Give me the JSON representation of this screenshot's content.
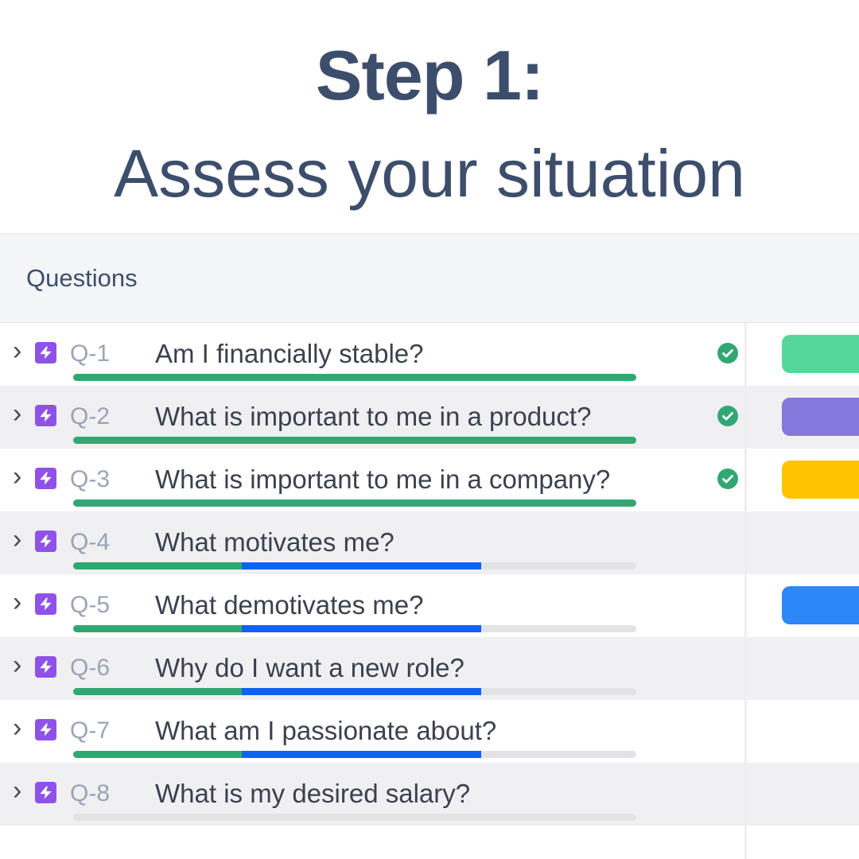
{
  "page": {
    "title_bold": "Step 1:",
    "title_light": "Assess your situation"
  },
  "table": {
    "section_label": "Questions",
    "rows": [
      {
        "id": "Q-1",
        "question": "Am I financially stable?",
        "status": "complete",
        "pill": "green"
      },
      {
        "id": "Q-2",
        "question": "What is important to me in a product?",
        "status": "complete",
        "pill": "purple"
      },
      {
        "id": "Q-3",
        "question": "What is important to me in a company?",
        "status": "complete",
        "pill": "yellow"
      },
      {
        "id": "Q-4",
        "question": "What motivates me?",
        "status": "in_progress",
        "pill": null
      },
      {
        "id": "Q-5",
        "question": "What demotivates me?",
        "status": "in_progress",
        "pill": "blue"
      },
      {
        "id": "Q-6",
        "question": "Why do I want a new role?",
        "status": "in_progress",
        "pill": null
      },
      {
        "id": "Q-7",
        "question": "What am I passionate about?",
        "status": "in_progress",
        "pill": null
      },
      {
        "id": "Q-8",
        "question": "What is my desired salary?",
        "status": "not_started",
        "pill": null
      }
    ],
    "progress": {
      "complete": {
        "green_pct": 100,
        "blue_pct": 0
      },
      "in_progress": {
        "green_pct": 30,
        "blue_pct": 42.5
      },
      "not_started": {
        "green_pct": 0,
        "blue_pct": 0
      }
    }
  },
  "icons": {
    "chevron": "›"
  },
  "colors": {
    "title": "#3d4e6c",
    "bolt": "#8f52e8",
    "bargreen": "#31a873",
    "barblue": "#0f62f5",
    "track": "#e3e3e6",
    "check": "#31a873",
    "pill_green": "#55d79b",
    "pill_purple": "#8577db",
    "pill_yellow": "#ffc400",
    "pill_blue": "#2c87f7"
  }
}
